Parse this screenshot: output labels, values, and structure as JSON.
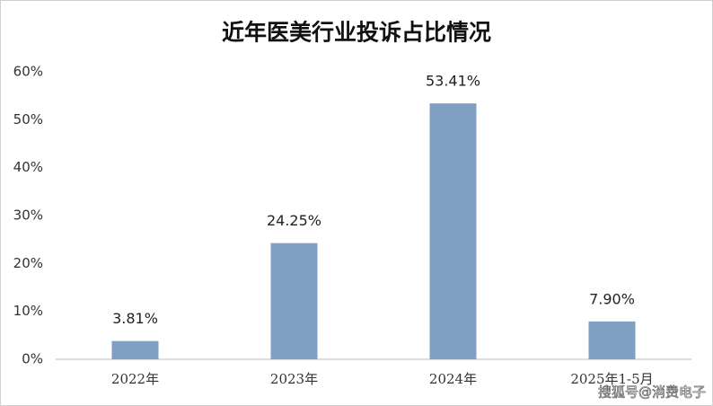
{
  "chart_data": {
    "type": "bar",
    "title": "近年医美行业投诉占比情况",
    "categories": [
      "2022年",
      "2023年",
      "2024年",
      "2025年1-5月"
    ],
    "values": [
      3.81,
      24.25,
      53.41,
      7.9
    ],
    "value_labels": [
      "3.81%",
      "24.25%",
      "53.41%",
      "7.90%"
    ],
    "color": "#7f9fc3",
    "ylim": [
      0,
      60
    ],
    "yticks": [
      {
        "value": 0,
        "label": "0%"
      },
      {
        "value": 10,
        "label": "10%"
      },
      {
        "value": 20,
        "label": "20%"
      },
      {
        "value": 30,
        "label": "30%"
      },
      {
        "value": 40,
        "label": "40%"
      },
      {
        "value": 50,
        "label": "50%"
      },
      {
        "value": 60,
        "label": "60%"
      }
    ],
    "grid": false,
    "watermark": "搜狐号@消费电子"
  }
}
